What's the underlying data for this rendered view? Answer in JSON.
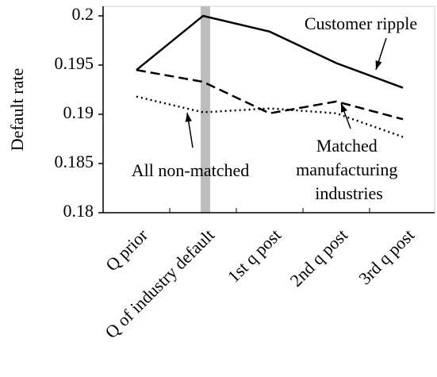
{
  "chart_data": {
    "type": "line",
    "y_label": "Default rate",
    "categories": [
      "Q prior",
      "Q of industry default",
      "1st q post",
      "2nd q post",
      "3rd q post"
    ],
    "series": [
      {
        "name": "Customer ripple",
        "color": "#000000",
        "style": "solid",
        "values": [
          0.1945,
          0.2,
          0.1984,
          0.1952,
          0.1927
        ]
      },
      {
        "name": "Matched manufacturing industries",
        "color": "#000000",
        "style": "dashed",
        "values": [
          0.1945,
          0.1933,
          0.1901,
          0.1913,
          0.1895
        ]
      },
      {
        "name": "All non-matched",
        "color": "#000000",
        "style": "dotted",
        "values": [
          0.1918,
          0.1902,
          0.1906,
          0.1901,
          0.1877
        ]
      }
    ],
    "ylim": [
      0.18,
      0.2
    ],
    "yticks": [
      0.18,
      0.185,
      0.19,
      0.195,
      0.2
    ]
  }
}
